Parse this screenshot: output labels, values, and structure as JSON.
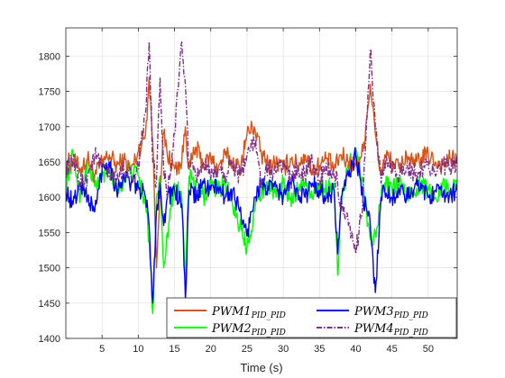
{
  "chart_data": {
    "type": "line",
    "title": "",
    "xlabel": "Time (s)",
    "ylabel": "",
    "xlim": [
      0,
      54
    ],
    "ylim": [
      1400,
      1840
    ],
    "xticks": [
      5,
      10,
      15,
      20,
      25,
      30,
      35,
      40,
      45,
      50
    ],
    "yticks": [
      1400,
      1450,
      1500,
      1550,
      1600,
      1650,
      1700,
      1750,
      1800
    ],
    "grid": true,
    "legend_position": "bottom-right",
    "legend_columns": 2,
    "series": [
      {
        "name": "PWM1",
        "name_sub": "PID_PID",
        "color": "#D95319",
        "style": "solid",
        "x": [
          0,
          1,
          2,
          3,
          4,
          5,
          6,
          7,
          8,
          9,
          10,
          11,
          11.5,
          12,
          12.5,
          13,
          13.5,
          14,
          15,
          16,
          16.5,
          17,
          18,
          19,
          20,
          21,
          22,
          23,
          24,
          25,
          26,
          27,
          28,
          29,
          30,
          31,
          32,
          33,
          34,
          35,
          36,
          37,
          38,
          39,
          40,
          41,
          42,
          42.7,
          43.5,
          44,
          45,
          46,
          47,
          48,
          49,
          50,
          51,
          52,
          53,
          54
        ],
        "y": [
          1648,
          1652,
          1640,
          1655,
          1632,
          1648,
          1660,
          1645,
          1652,
          1638,
          1665,
          1690,
          1770,
          1680,
          1500,
          1620,
          1690,
          1660,
          1640,
          1650,
          1700,
          1640,
          1670,
          1645,
          1655,
          1640,
          1660,
          1650,
          1640,
          1690,
          1700,
          1660,
          1645,
          1650,
          1640,
          1655,
          1645,
          1660,
          1640,
          1645,
          1655,
          1640,
          1660,
          1650,
          1645,
          1665,
          1760,
          1690,
          1630,
          1660,
          1650,
          1640,
          1660,
          1645,
          1655,
          1660,
          1650,
          1645,
          1655,
          1650
        ]
      },
      {
        "name": "PWM2",
        "name_sub": "PID_PID",
        "color": "#00FF00",
        "style": "solid",
        "x": [
          0,
          1,
          2,
          3,
          4,
          5,
          6,
          7,
          8,
          9,
          10,
          11,
          11.5,
          12,
          12.5,
          13,
          13.5,
          14,
          15,
          16,
          16.5,
          17,
          18,
          19,
          20,
          21,
          22,
          23,
          24,
          25,
          26,
          27,
          28,
          29,
          30,
          31,
          32,
          33,
          34,
          35,
          36,
          37,
          37.5,
          38,
          39,
          40,
          41,
          42,
          42.7,
          43.5,
          44,
          45,
          46,
          47,
          48,
          49,
          50,
          51,
          52,
          53,
          54
        ],
        "y": [
          1620,
          1660,
          1600,
          1650,
          1615,
          1630,
          1640,
          1610,
          1625,
          1640,
          1630,
          1590,
          1540,
          1435,
          1600,
          1630,
          1500,
          1550,
          1620,
          1600,
          1480,
          1630,
          1610,
          1600,
          1620,
          1610,
          1620,
          1590,
          1560,
          1530,
          1580,
          1610,
          1620,
          1600,
          1620,
          1600,
          1610,
          1620,
          1600,
          1620,
          1610,
          1620,
          1490,
          1600,
          1640,
          1670,
          1620,
          1540,
          1550,
          1600,
          1620,
          1610,
          1620,
          1600,
          1610,
          1620,
          1610,
          1600,
          1620,
          1610,
          1615
        ]
      },
      {
        "name": "PWM3",
        "name_sub": "PID_PID",
        "color": "#0000FF",
        "style": "solid",
        "x": [
          0,
          1,
          2,
          3,
          4,
          5,
          6,
          7,
          8,
          9,
          10,
          11,
          11.5,
          12,
          12.5,
          13,
          13.5,
          14,
          15,
          16,
          16.5,
          17,
          18,
          19,
          20,
          21,
          22,
          23,
          24,
          25,
          26,
          27,
          28,
          29,
          30,
          31,
          32,
          33,
          34,
          35,
          36,
          37,
          37.5,
          38,
          39,
          40,
          41,
          42,
          42.7,
          43.5,
          44,
          45,
          46,
          47,
          48,
          49,
          50,
          51,
          52,
          53,
          54
        ],
        "y": [
          1610,
          1590,
          1620,
          1600,
          1580,
          1640,
          1650,
          1610,
          1630,
          1620,
          1615,
          1600,
          1560,
          1450,
          1580,
          1620,
          1560,
          1600,
          1610,
          1590,
          1455,
          1610,
          1600,
          1620,
          1610,
          1615,
          1600,
          1610,
          1580,
          1545,
          1600,
          1620,
          1610,
          1615,
          1600,
          1620,
          1610,
          1600,
          1620,
          1610,
          1600,
          1610,
          1520,
          1600,
          1630,
          1660,
          1600,
          1560,
          1465,
          1600,
          1610,
          1600,
          1610,
          1600,
          1610,
          1620,
          1600,
          1610,
          1600,
          1605,
          1610
        ]
      },
      {
        "name": "PWM4",
        "name_sub": "PID_PID",
        "color": "#7E2F8E",
        "style": "dashdot",
        "x": [
          0,
          1,
          2,
          3,
          4,
          5,
          6,
          7,
          8,
          9,
          10,
          11,
          11.5,
          12,
          12.5,
          13,
          13.5,
          14,
          15,
          16,
          16.5,
          17,
          18,
          19,
          20,
          21,
          22,
          23,
          24,
          25,
          26,
          27,
          28,
          29,
          30,
          31,
          32,
          33,
          34,
          35,
          36,
          37,
          37.5,
          38,
          39,
          40,
          41,
          42,
          42.7,
          43.5,
          44,
          45,
          46,
          47,
          48,
          49,
          50,
          51,
          52,
          53,
          54
        ],
        "y": [
          1640,
          1650,
          1620,
          1630,
          1660,
          1640,
          1630,
          1625,
          1640,
          1630,
          1640,
          1720,
          1820,
          1650,
          1620,
          1770,
          1640,
          1600,
          1690,
          1820,
          1760,
          1640,
          1630,
          1650,
          1625,
          1640,
          1630,
          1650,
          1630,
          1660,
          1680,
          1620,
          1640,
          1635,
          1650,
          1625,
          1640,
          1630,
          1650,
          1625,
          1640,
          1630,
          1620,
          1580,
          1560,
          1520,
          1600,
          1810,
          1700,
          1620,
          1650,
          1640,
          1630,
          1645,
          1635,
          1640,
          1650,
          1630,
          1645,
          1640,
          1650
        ]
      }
    ]
  }
}
